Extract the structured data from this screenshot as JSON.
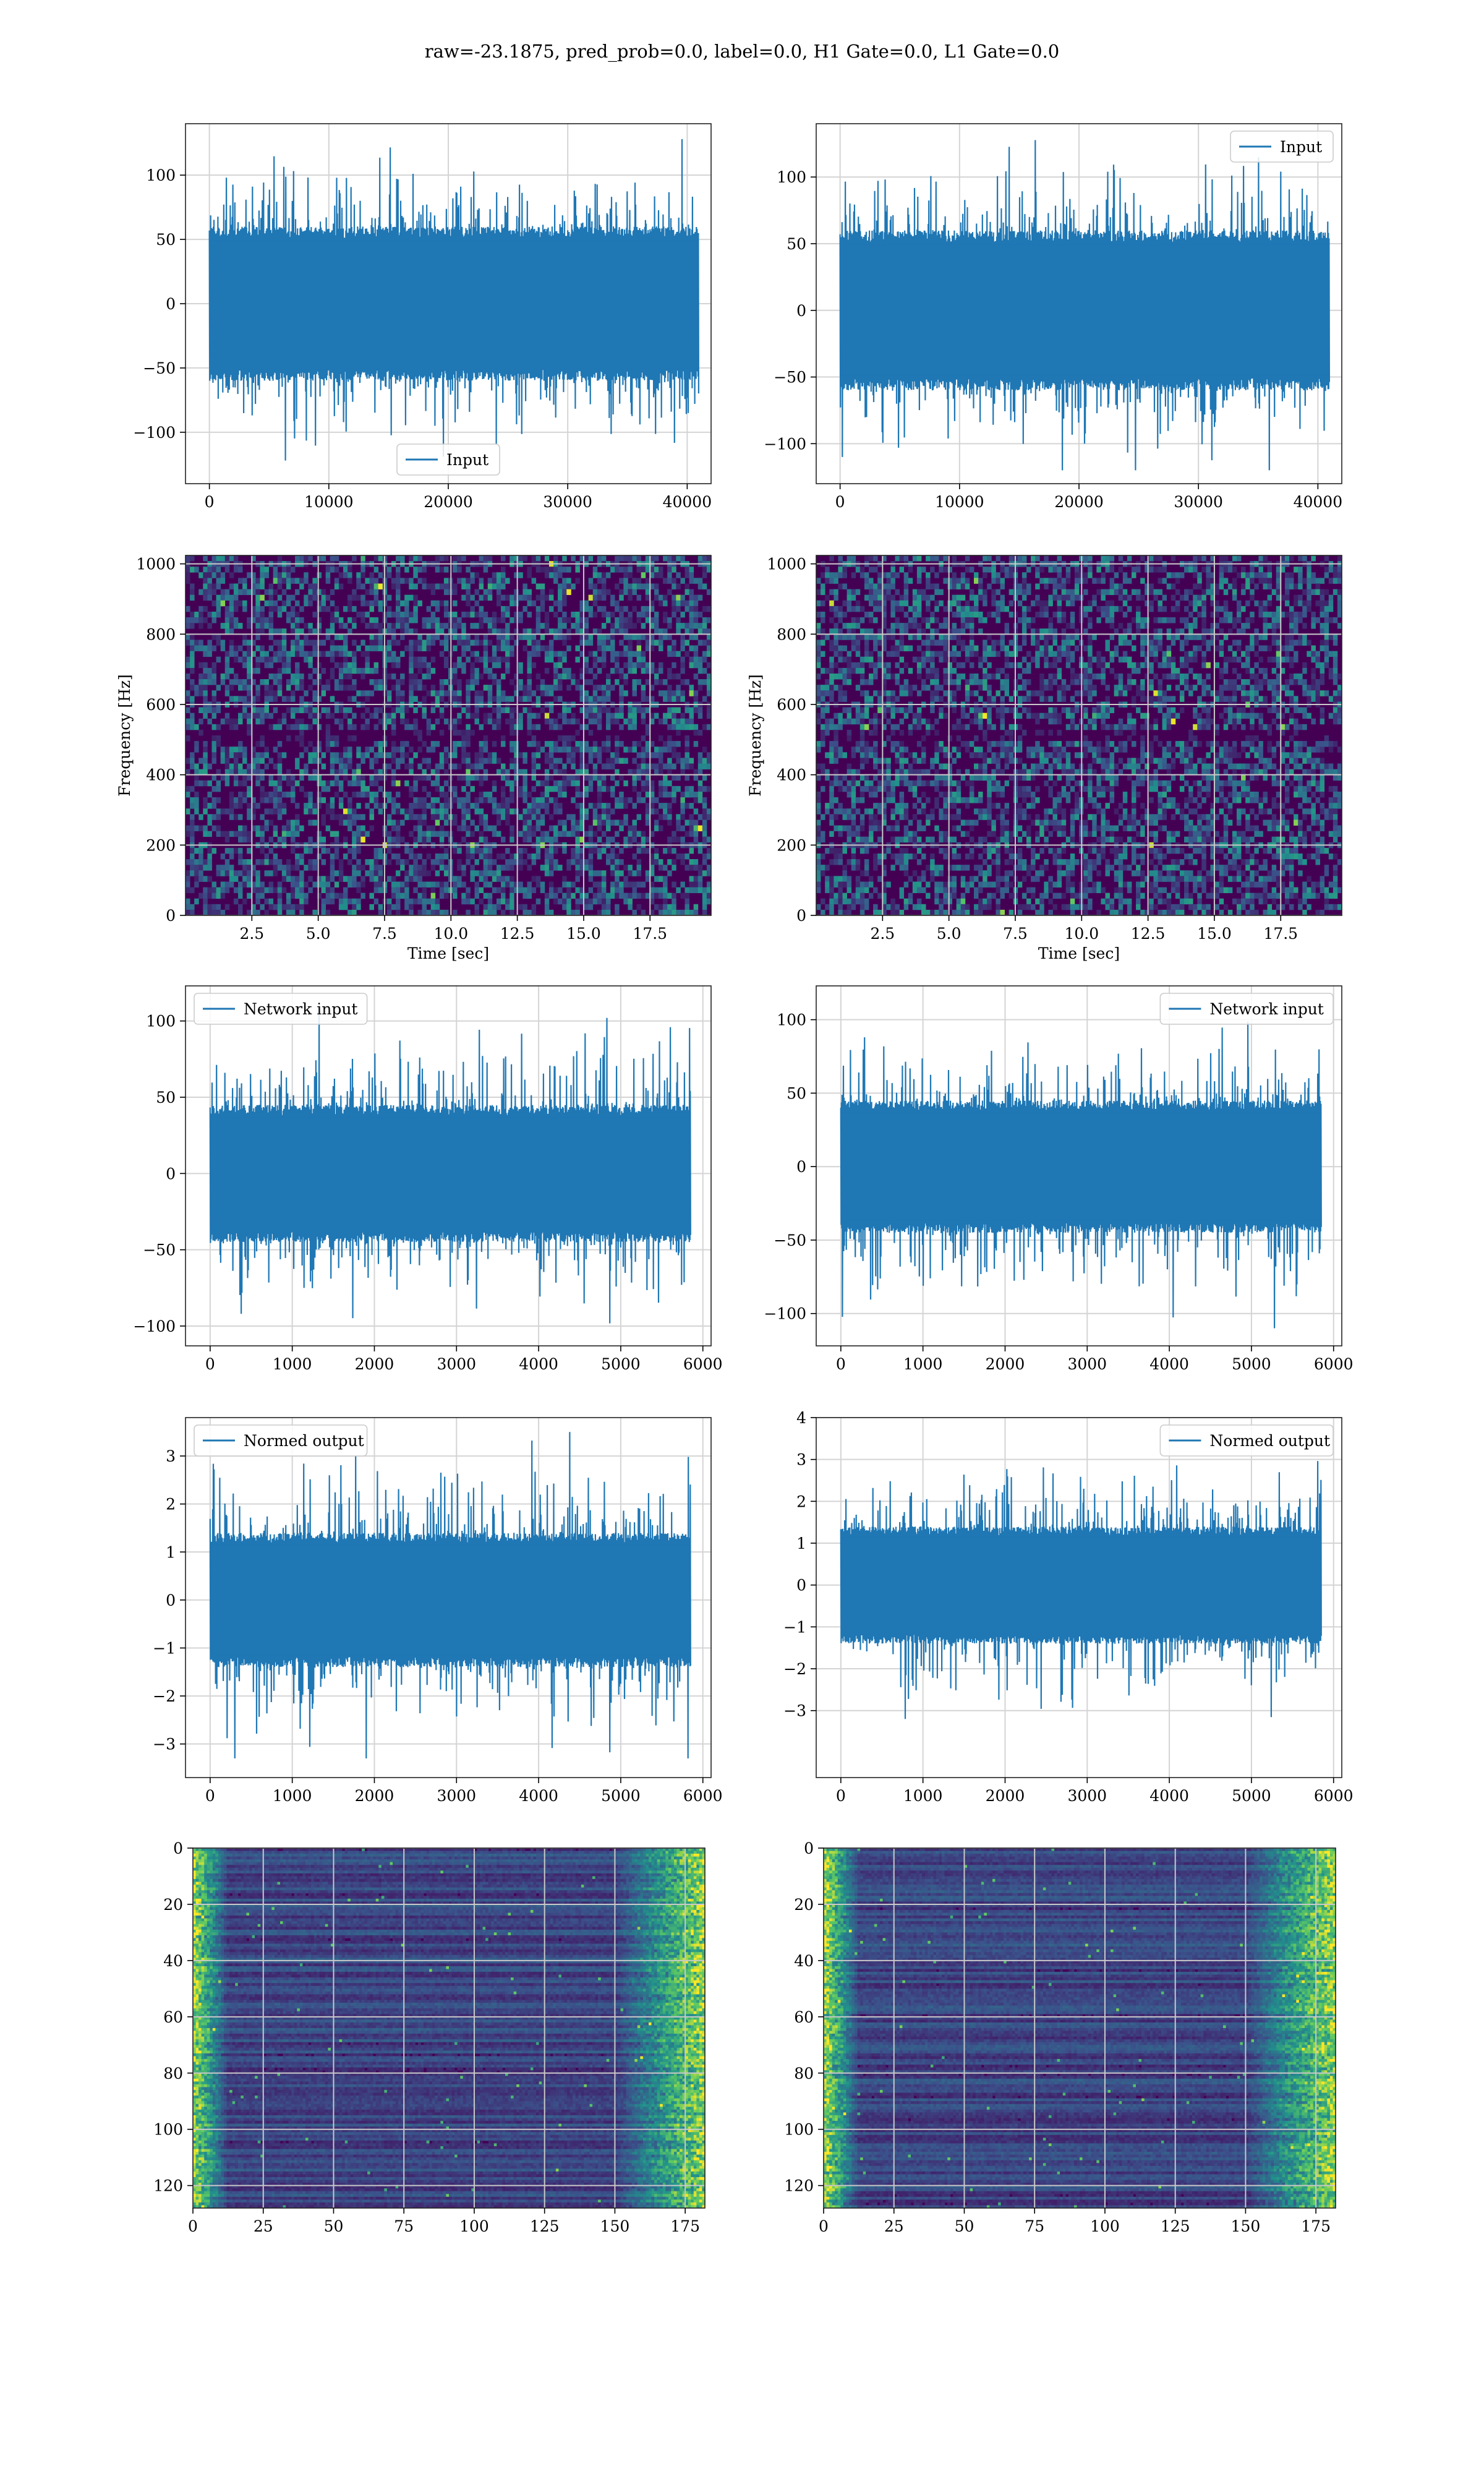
{
  "figure_title": "raw=-23.1875, pred_prob=0.0, label=0.0, H1 Gate=0.0, L1 Gate=0.0",
  "colors": {
    "line": "#1f77b4",
    "grid": "#d4d4d4",
    "viridis_low": "#440154",
    "viridis_mid": "#21918c",
    "viridis_high": "#fde725"
  },
  "chart_data": [
    {
      "id": "input-h1",
      "type": "line",
      "legend": "Input",
      "legend_position": "lower center",
      "xlim": [
        -2000,
        42000
      ],
      "ylim": [
        -140,
        140
      ],
      "xticks": [
        0,
        10000,
        20000,
        30000,
        40000
      ],
      "yticks": [
        -100,
        -50,
        0,
        50,
        100
      ],
      "x_range": [
        0,
        40960
      ],
      "band": [
        -60,
        60
      ],
      "peak_max": 128,
      "peak_min": -122,
      "grid": true,
      "xlabel": "",
      "ylabel": ""
    },
    {
      "id": "input-l1",
      "type": "line",
      "legend": "Input",
      "legend_position": "upper right",
      "xlim": [
        -2000,
        42000
      ],
      "ylim": [
        -130,
        140
      ],
      "xticks": [
        0,
        10000,
        20000,
        30000,
        40000
      ],
      "yticks": [
        -100,
        -50,
        0,
        50,
        100
      ],
      "x_range": [
        0,
        40960
      ],
      "band": [
        -60,
        60
      ],
      "peak_max": 132,
      "peak_min": -120,
      "grid": true,
      "xlabel": "",
      "ylabel": ""
    },
    {
      "id": "spectrogram-h1",
      "type": "heatmap",
      "colormap": "viridis",
      "xlim": [
        0,
        19.8
      ],
      "ylim": [
        0,
        1024
      ],
      "xticks": [
        2.5,
        5.0,
        7.5,
        10.0,
        12.5,
        15.0,
        17.5
      ],
      "yticks": [
        0,
        200,
        400,
        600,
        800,
        1000
      ],
      "grid": true,
      "xlabel": "Time [sec]",
      "ylabel": "Frequency [Hz]"
    },
    {
      "id": "spectrogram-l1",
      "type": "heatmap",
      "colormap": "viridis",
      "xlim": [
        0,
        19.8
      ],
      "ylim": [
        0,
        1024
      ],
      "xticks": [
        2.5,
        5.0,
        7.5,
        10.0,
        12.5,
        15.0,
        17.5
      ],
      "yticks": [
        0,
        200,
        400,
        600,
        800,
        1000
      ],
      "grid": true,
      "xlabel": "Time [sec]",
      "ylabel": "Frequency [Hz]"
    },
    {
      "id": "network-input-h1",
      "type": "line",
      "legend": "Network input",
      "legend_position": "upper left",
      "xlim": [
        -300,
        6100
      ],
      "ylim": [
        -113,
        123
      ],
      "xticks": [
        0,
        1000,
        2000,
        3000,
        4000,
        5000,
        6000
      ],
      "yticks": [
        -100,
        -50,
        0,
        50,
        100
      ],
      "x_range": [
        0,
        5850
      ],
      "band": [
        -45,
        45
      ],
      "peak_max": 110,
      "peak_min": -100,
      "grid": true,
      "xlabel": "",
      "ylabel": ""
    },
    {
      "id": "network-input-l1",
      "type": "line",
      "legend": "Network input",
      "legend_position": "upper right",
      "xlim": [
        -300,
        6100
      ],
      "ylim": [
        -122,
        123
      ],
      "xticks": [
        0,
        1000,
        2000,
        3000,
        4000,
        5000,
        6000
      ],
      "yticks": [
        -100,
        -50,
        0,
        50,
        100
      ],
      "x_range": [
        0,
        5850
      ],
      "band": [
        -45,
        45
      ],
      "peak_max": 102,
      "peak_min": -110,
      "grid": true,
      "xlabel": "",
      "ylabel": ""
    },
    {
      "id": "normed-output-h1",
      "type": "line",
      "legend": "Normed output",
      "legend_position": "upper left",
      "xlim": [
        -300,
        6100
      ],
      "ylim": [
        -3.7,
        3.8
      ],
      "xticks": [
        0,
        1000,
        2000,
        3000,
        4000,
        5000,
        6000
      ],
      "yticks": [
        -3,
        -2,
        -1,
        0,
        1,
        2,
        3
      ],
      "x_range": [
        0,
        5850
      ],
      "band": [
        -1.4,
        1.4
      ],
      "peak_max": 3.5,
      "peak_min": -3.3,
      "grid": true,
      "xlabel": "",
      "ylabel": ""
    },
    {
      "id": "normed-output-l1",
      "type": "line",
      "legend": "Normed output",
      "legend_position": "upper right",
      "xlim": [
        -300,
        6100
      ],
      "ylim": [
        -4.6,
        4.0
      ],
      "xticks": [
        0,
        1000,
        2000,
        3000,
        4000,
        5000,
        6000
      ],
      "yticks": [
        -3,
        -2,
        -1,
        0,
        1,
        2,
        3,
        4
      ],
      "x_range": [
        0,
        5850
      ],
      "band": [
        -1.4,
        1.4
      ],
      "peak_max": 3.3,
      "peak_min": -3.5,
      "grid": true,
      "xlabel": "",
      "ylabel": ""
    },
    {
      "id": "feature-map-h1",
      "type": "heatmap",
      "colormap": "viridis",
      "y_inverted": true,
      "xlim": [
        0,
        182
      ],
      "ylim": [
        128,
        0
      ],
      "xticks": [
        0,
        25,
        50,
        75,
        100,
        125,
        150,
        175
      ],
      "yticks": [
        0,
        20,
        40,
        60,
        80,
        100,
        120
      ],
      "grid": true,
      "xlabel": "",
      "ylabel": ""
    },
    {
      "id": "feature-map-l1",
      "type": "heatmap",
      "colormap": "viridis",
      "y_inverted": true,
      "xlim": [
        0,
        182
      ],
      "ylim": [
        128,
        0
      ],
      "xticks": [
        0,
        25,
        50,
        75,
        100,
        125,
        150,
        175
      ],
      "yticks": [
        0,
        20,
        40,
        60,
        80,
        100,
        120
      ],
      "grid": true,
      "xlabel": "",
      "ylabel": ""
    }
  ]
}
